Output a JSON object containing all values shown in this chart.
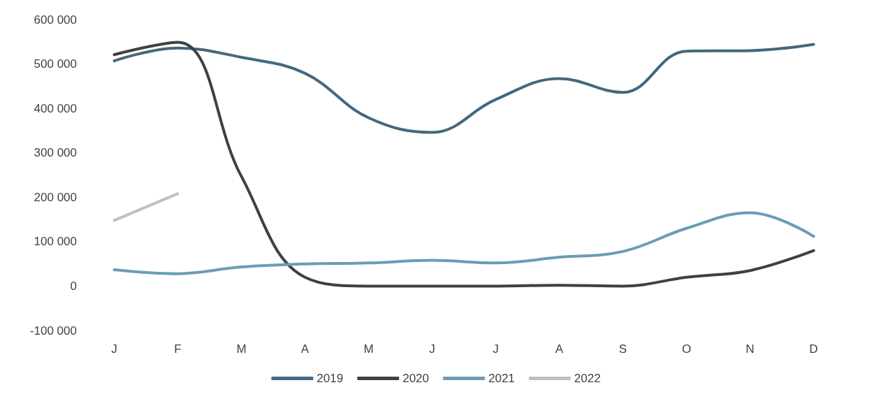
{
  "chart_data": {
    "type": "line",
    "categories": [
      "J",
      "F",
      "M",
      "A",
      "M",
      "J",
      "J",
      "A",
      "S",
      "O",
      "N",
      "D"
    ],
    "series": [
      {
        "name": "2019",
        "color": "#44687f",
        "values": [
          507000,
          536000,
          515000,
          479000,
          379000,
          346000,
          420000,
          467000,
          436000,
          529000,
          530000,
          544000
        ]
      },
      {
        "name": "2020",
        "color": "#404040",
        "values": [
          521000,
          549000,
          247000,
          20000,
          0,
          0,
          0,
          2000,
          0,
          20000,
          35000,
          80000
        ]
      },
      {
        "name": "2021",
        "color": "#6a9db5",
        "values": [
          37000,
          28000,
          43000,
          50000,
          52000,
          58000,
          52000,
          65000,
          78000,
          130000,
          165000,
          112000
        ]
      },
      {
        "name": "2022",
        "color": "#c0c0c0",
        "values": [
          148000,
          208000,
          null,
          null,
          null,
          null,
          null,
          null,
          null,
          null,
          null,
          null
        ]
      }
    ],
    "ylim": [
      -100000,
      600000
    ],
    "yticks": [
      {
        "value": -100000,
        "label": "-100 000"
      },
      {
        "value": 0,
        "label": "0"
      },
      {
        "value": 100000,
        "label": "100 000"
      },
      {
        "value": 200000,
        "label": "200 000"
      },
      {
        "value": 300000,
        "label": "300 000"
      },
      {
        "value": 400000,
        "label": "400 000"
      },
      {
        "value": 500000,
        "label": "500 000"
      },
      {
        "value": 600000,
        "label": "600 000"
      }
    ],
    "grid": false,
    "legend": "bottom",
    "marker": "none",
    "line_style": "solid"
  }
}
